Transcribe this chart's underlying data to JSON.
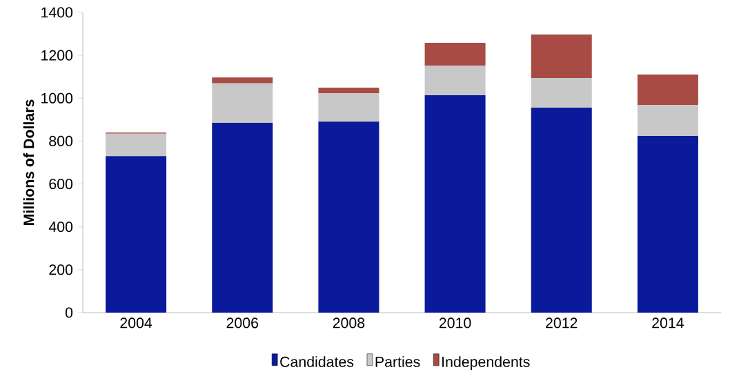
{
  "chart_data": {
    "type": "bar",
    "stacked": true,
    "ylabel": "Millions of Dollars",
    "categories": [
      "2004",
      "2006",
      "2008",
      "2010",
      "2012",
      "2014"
    ],
    "series": [
      {
        "name": "Candidates",
        "color": "#0a1a9a",
        "values": [
          730,
          885,
          891,
          1014,
          956,
          824
        ]
      },
      {
        "name": "Parties",
        "color": "#c8c8c8",
        "values": [
          104,
          184,
          132,
          138,
          138,
          145
        ]
      },
      {
        "name": "Independents",
        "color": "#a84b45",
        "values": [
          6,
          28,
          26,
          106,
          203,
          141
        ]
      }
    ],
    "ylim": [
      0,
      1400
    ],
    "yticks": [
      0,
      200,
      400,
      600,
      800,
      1000,
      1200,
      1400
    ],
    "legend": "bottom"
  }
}
